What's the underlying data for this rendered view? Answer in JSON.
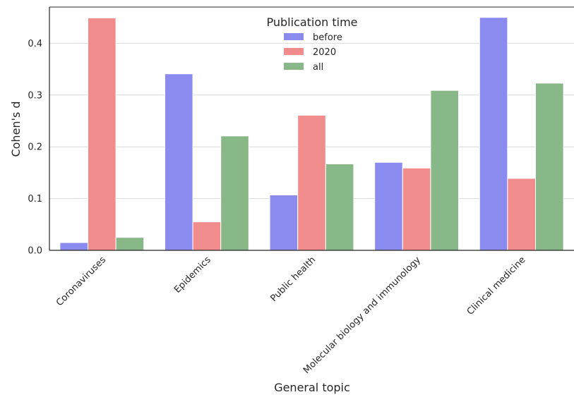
{
  "chart_data": {
    "type": "bar",
    "xlabel": "General topic",
    "ylabel": "Cohen's d",
    "ylim": [
      0,
      0.47
    ],
    "yticks": [
      "0.0",
      "0.1",
      "0.2",
      "0.3",
      "0.4"
    ],
    "grid": "horizontal",
    "legend": {
      "title": "Publication time",
      "placement": "top-center"
    },
    "categories": [
      "Coronaviruses",
      "Epidemics",
      "Public health",
      "Molecular biology and immunology",
      "Clinical medicine"
    ],
    "series": [
      {
        "name": "before",
        "color": "#8b8bef",
        "values": [
          0.015,
          0.341,
          0.107,
          0.17,
          0.45
        ]
      },
      {
        "name": "2020",
        "color": "#f08c8c",
        "values": [
          0.449,
          0.055,
          0.261,
          0.159,
          0.139
        ]
      },
      {
        "name": "all",
        "color": "#88b888",
        "values": [
          0.025,
          0.221,
          0.167,
          0.309,
          0.323
        ]
      }
    ]
  }
}
